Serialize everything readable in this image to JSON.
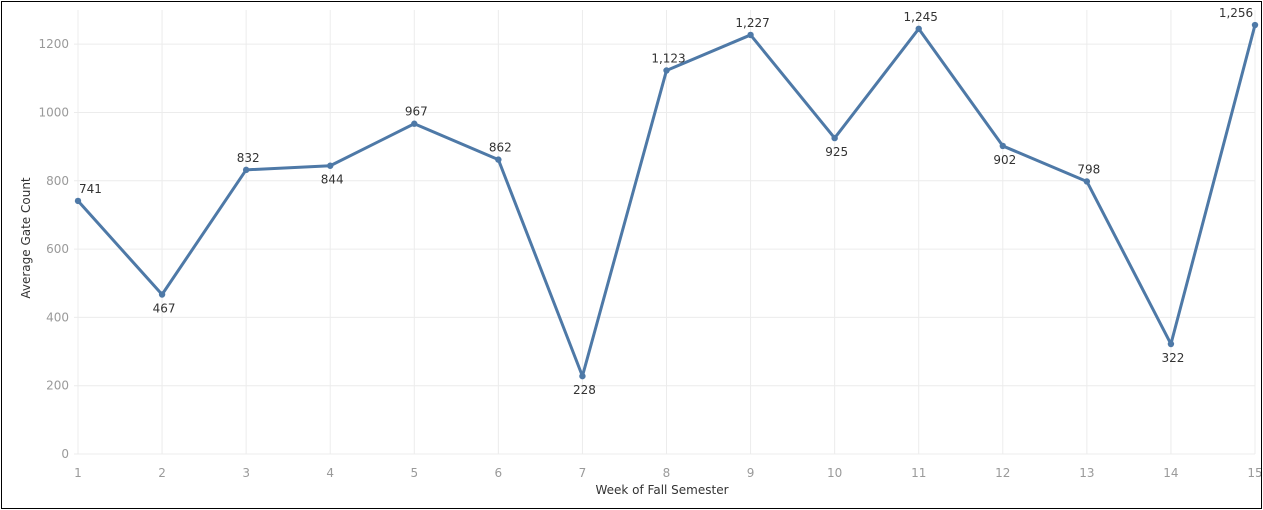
{
  "chart_data": {
    "type": "line",
    "title": "",
    "xlabel": "Week of Fall Semester",
    "ylabel": "Average Gate Count",
    "x": [
      1,
      2,
      3,
      4,
      5,
      6,
      7,
      8,
      9,
      10,
      11,
      12,
      13,
      14,
      15
    ],
    "series": [
      {
        "values": [
          741,
          467,
          832,
          844,
          967,
          862,
          228,
          1123,
          1227,
          925,
          1245,
          902,
          798,
          322,
          1256
        ],
        "labels": [
          "741",
          "467",
          "832",
          "844",
          "967",
          "862",
          "228",
          "1,123",
          "1,227",
          "925",
          "1,245",
          "902",
          "798",
          "322",
          "1,256"
        ],
        "label_pos": [
          "above",
          "below",
          "above",
          "below",
          "above",
          "above",
          "below",
          "above",
          "above",
          "below",
          "above",
          "below",
          "above",
          "below",
          "above"
        ]
      }
    ],
    "yticks": [
      0,
      200,
      400,
      600,
      800,
      1000,
      1200
    ],
    "ylim": [
      0,
      1300
    ],
    "xlim": [
      1,
      15
    ],
    "grid": true,
    "legend": "none",
    "colors": {
      "line": "#4e79a7",
      "grid": "#ececec",
      "tick_text": "#9a9a9a"
    }
  }
}
